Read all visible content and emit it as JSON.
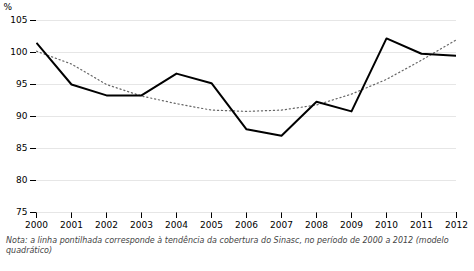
{
  "chart_data": {
    "type": "line",
    "x": [
      2000,
      2001,
      2002,
      2003,
      2004,
      2005,
      2006,
      2007,
      2008,
      2009,
      2010,
      2011,
      2012
    ],
    "series": [
      {
        "color": "#000000",
        "line_style": "solid",
        "values": [
          101.5,
          95.0,
          93.3,
          93.3,
          96.7,
          95.2,
          88.0,
          87.0,
          92.3,
          90.8,
          102.2,
          99.8,
          99.5
        ]
      },
      {
        "color": "#666666",
        "line_style": "dotted",
        "values": [
          100.2,
          98.2,
          95.0,
          93.2,
          92.0,
          91.0,
          90.8,
          91.0,
          91.8,
          93.5,
          95.8,
          98.8,
          102.0
        ]
      }
    ],
    "ylabel": "%",
    "annotations": [
      "Nota: a linha pontilhada corresponde à tendência da cobertura do Sinasc, no período de 2000 a 2012 (modelo quadrático)"
    ],
    "xlim": [
      2000,
      2012
    ],
    "xticks": [
      2000,
      2001,
      2002,
      2003,
      2004,
      2005,
      2006,
      2007,
      2008,
      2009,
      2010,
      2011,
      2012
    ],
    "ylim": [
      75,
      105
    ],
    "yticks": [
      75,
      80,
      85,
      90,
      95,
      100,
      105
    ],
    "grid": "y"
  }
}
